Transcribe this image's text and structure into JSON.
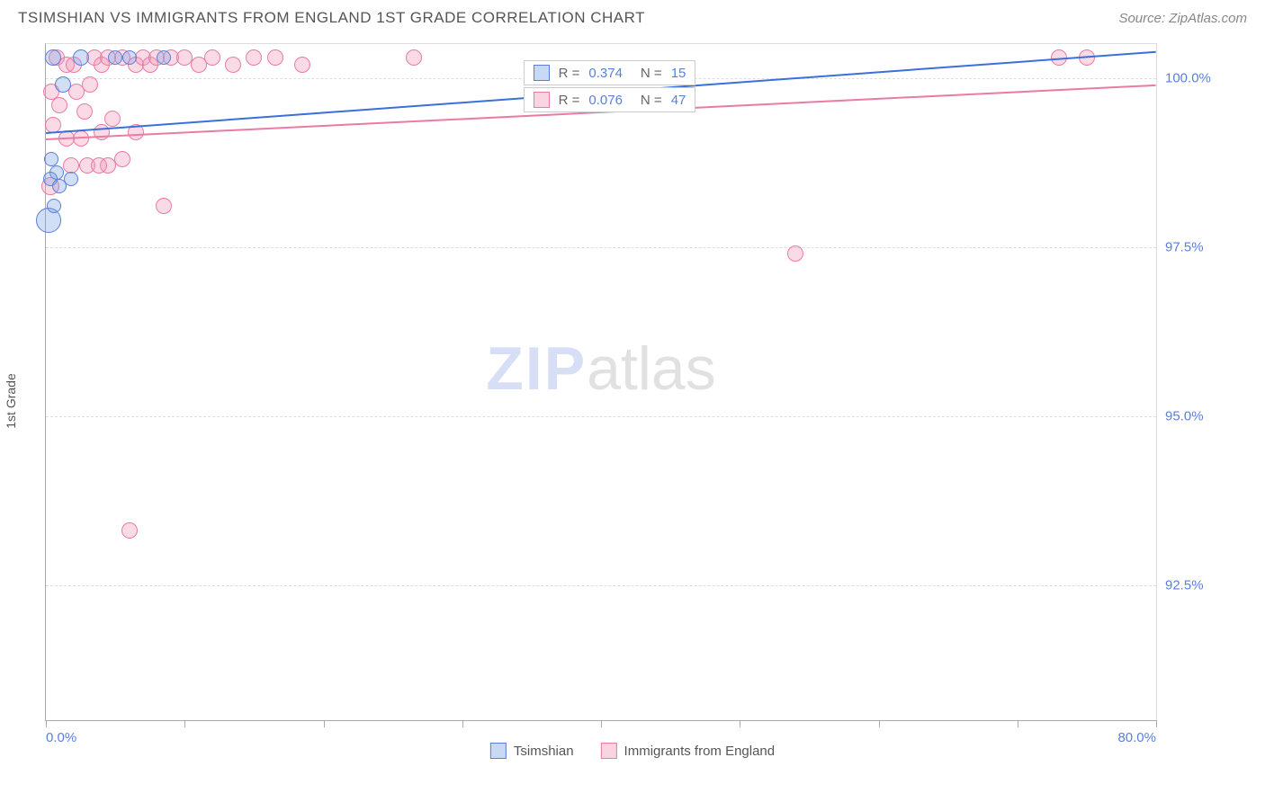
{
  "header": {
    "title": "TSIMSHIAN VS IMMIGRANTS FROM ENGLAND 1ST GRADE CORRELATION CHART",
    "source": "Source: ZipAtlas.com"
  },
  "axes": {
    "y_label": "1st Grade",
    "x_min": 0.0,
    "x_max": 80.0,
    "y_min": 90.5,
    "y_max": 100.5,
    "y_ticks": [
      {
        "value": 100.0,
        "label": "100.0%"
      },
      {
        "value": 97.5,
        "label": "97.5%"
      },
      {
        "value": 95.0,
        "label": "95.0%"
      },
      {
        "value": 92.5,
        "label": "92.5%"
      }
    ],
    "x_tick_positions": [
      0,
      10,
      20,
      30,
      40,
      50,
      60,
      70,
      80
    ],
    "x_min_label": "0.0%",
    "x_max_label": "80.0%"
  },
  "watermark": {
    "part1": "ZIP",
    "part2": "atlas"
  },
  "series": {
    "blue": {
      "name": "Tsimshian",
      "color_fill": "rgba(120,160,230,0.35)",
      "color_stroke": "#5b7fd9",
      "stats": {
        "r_label": "R =",
        "r": "0.374",
        "n_label": "N =",
        "n": "15"
      },
      "trend": {
        "x1": 0,
        "y1": 99.2,
        "x2": 80,
        "y2": 100.4
      },
      "points": [
        {
          "x": 0.5,
          "y": 100.3,
          "r": 9
        },
        {
          "x": 2.5,
          "y": 100.3,
          "r": 9
        },
        {
          "x": 1.2,
          "y": 99.9,
          "r": 9
        },
        {
          "x": 0.4,
          "y": 98.8,
          "r": 8
        },
        {
          "x": 0.8,
          "y": 98.6,
          "r": 8
        },
        {
          "x": 0.3,
          "y": 98.5,
          "r": 8
        },
        {
          "x": 1.8,
          "y": 98.5,
          "r": 8
        },
        {
          "x": 1.0,
          "y": 98.4,
          "r": 8
        },
        {
          "x": 0.2,
          "y": 97.9,
          "r": 14
        },
        {
          "x": 8.5,
          "y": 100.3,
          "r": 8
        },
        {
          "x": 5.0,
          "y": 100.3,
          "r": 8
        },
        {
          "x": 6.0,
          "y": 100.3,
          "r": 8
        },
        {
          "x": 0.6,
          "y": 98.1,
          "r": 8
        }
      ]
    },
    "pink": {
      "name": "Immigrants from England",
      "color_fill": "rgba(240,150,180,0.35)",
      "color_stroke": "#e97ba5",
      "stats": {
        "r_label": "R =",
        "r": "0.076",
        "n_label": "N =",
        "n": "47"
      },
      "trend": {
        "x1": 0,
        "y1": 99.1,
        "x2": 80,
        "y2": 99.9
      },
      "points": [
        {
          "x": 0.3,
          "y": 98.4,
          "r": 10
        },
        {
          "x": 0.8,
          "y": 100.3,
          "r": 9
        },
        {
          "x": 1.5,
          "y": 100.2,
          "r": 9
        },
        {
          "x": 2.0,
          "y": 100.2,
          "r": 9
        },
        {
          "x": 2.8,
          "y": 99.5,
          "r": 9
        },
        {
          "x": 3.5,
          "y": 100.3,
          "r": 9
        },
        {
          "x": 4.0,
          "y": 100.2,
          "r": 9
        },
        {
          "x": 4.5,
          "y": 100.3,
          "r": 9
        },
        {
          "x": 5.5,
          "y": 100.3,
          "r": 9
        },
        {
          "x": 6.5,
          "y": 100.2,
          "r": 9
        },
        {
          "x": 7.0,
          "y": 100.3,
          "r": 9
        },
        {
          "x": 7.5,
          "y": 100.2,
          "r": 9
        },
        {
          "x": 8.0,
          "y": 100.3,
          "r": 9
        },
        {
          "x": 9.0,
          "y": 100.3,
          "r": 9
        },
        {
          "x": 10.0,
          "y": 100.3,
          "r": 9
        },
        {
          "x": 11.0,
          "y": 100.2,
          "r": 9
        },
        {
          "x": 12.0,
          "y": 100.3,
          "r": 9
        },
        {
          "x": 13.5,
          "y": 100.2,
          "r": 9
        },
        {
          "x": 15.0,
          "y": 100.3,
          "r": 9
        },
        {
          "x": 16.5,
          "y": 100.3,
          "r": 9
        },
        {
          "x": 18.5,
          "y": 100.2,
          "r": 9
        },
        {
          "x": 26.5,
          "y": 100.3,
          "r": 9
        },
        {
          "x": 73.0,
          "y": 100.3,
          "r": 9
        },
        {
          "x": 75.0,
          "y": 100.3,
          "r": 9
        },
        {
          "x": 1.0,
          "y": 99.6,
          "r": 9
        },
        {
          "x": 1.5,
          "y": 99.1,
          "r": 9
        },
        {
          "x": 2.5,
          "y": 99.1,
          "r": 9
        },
        {
          "x": 4.0,
          "y": 99.2,
          "r": 9
        },
        {
          "x": 4.8,
          "y": 99.4,
          "r": 9
        },
        {
          "x": 3.0,
          "y": 98.7,
          "r": 9
        },
        {
          "x": 4.5,
          "y": 98.7,
          "r": 9
        },
        {
          "x": 5.5,
          "y": 98.8,
          "r": 9
        },
        {
          "x": 8.5,
          "y": 98.1,
          "r": 9
        },
        {
          "x": 6.0,
          "y": 93.3,
          "r": 9
        },
        {
          "x": 54.0,
          "y": 97.4,
          "r": 9
        },
        {
          "x": 0.5,
          "y": 99.3,
          "r": 9
        },
        {
          "x": 1.8,
          "y": 98.7,
          "r": 9
        },
        {
          "x": 2.2,
          "y": 99.8,
          "r": 9
        },
        {
          "x": 3.2,
          "y": 99.9,
          "r": 9
        },
        {
          "x": 0.4,
          "y": 99.8,
          "r": 9
        },
        {
          "x": 6.5,
          "y": 99.2,
          "r": 9
        },
        {
          "x": 3.8,
          "y": 98.7,
          "r": 9
        }
      ]
    }
  },
  "legend": {
    "items": [
      {
        "key": "blue",
        "label": "Tsimshian"
      },
      {
        "key": "pink",
        "label": "Immigrants from England"
      }
    ]
  }
}
